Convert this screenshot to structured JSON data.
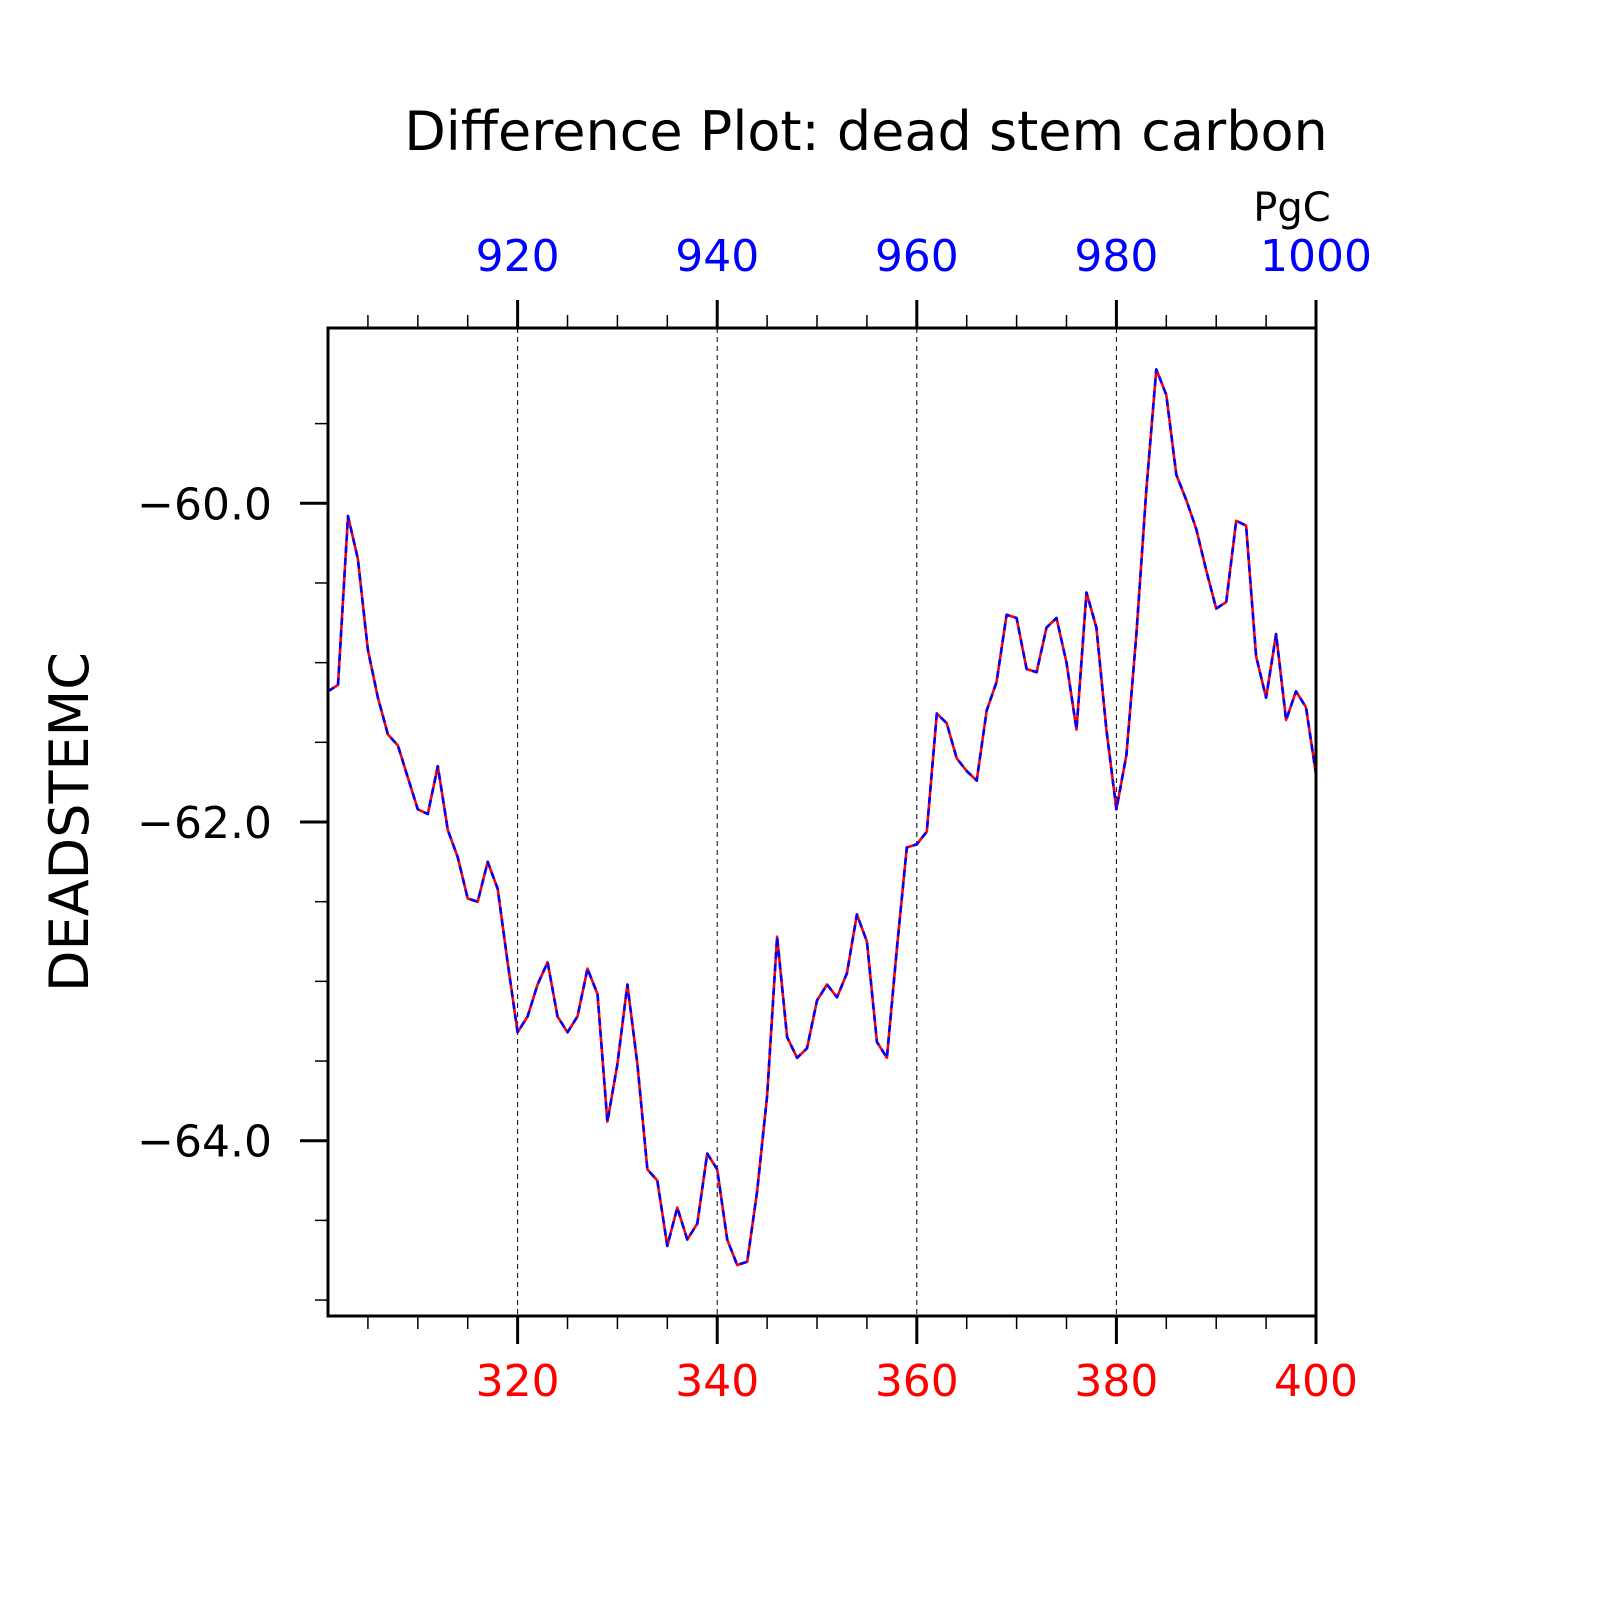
{
  "chart_data": {
    "type": "line",
    "title": "Difference Plot: dead stem carbon",
    "ylabel": "DEADSTEMC",
    "units": "PgC",
    "x": [
      301,
      302,
      303,
      304,
      305,
      306,
      307,
      308,
      309,
      310,
      311,
      312,
      313,
      314,
      315,
      316,
      317,
      318,
      319,
      320,
      321,
      322,
      323,
      324,
      325,
      326,
      327,
      328,
      329,
      330,
      331,
      332,
      333,
      334,
      335,
      336,
      337,
      338,
      339,
      340,
      341,
      342,
      343,
      344,
      345,
      346,
      347,
      348,
      349,
      350,
      351,
      352,
      353,
      354,
      355,
      356,
      357,
      358,
      359,
      360,
      361,
      362,
      363,
      364,
      365,
      366,
      367,
      368,
      369,
      370,
      371,
      372,
      373,
      374,
      375,
      376,
      377,
      378,
      379,
      380,
      381,
      382,
      383,
      384,
      385,
      386,
      387,
      388,
      389,
      390,
      391,
      392,
      393,
      394,
      395,
      396,
      397,
      398,
      399,
      400
    ],
    "y": [
      -61.18,
      -61.14,
      -60.08,
      -60.35,
      -60.92,
      -61.22,
      -61.45,
      -61.52,
      -61.72,
      -61.92,
      -61.95,
      -61.65,
      -62.05,
      -62.22,
      -62.48,
      -62.5,
      -62.25,
      -62.42,
      -62.88,
      -63.32,
      -63.22,
      -63.02,
      -62.88,
      -63.22,
      -63.32,
      -63.22,
      -62.92,
      -63.08,
      -63.88,
      -63.52,
      -63.02,
      -63.52,
      -64.18,
      -64.25,
      -64.66,
      -64.42,
      -64.62,
      -64.52,
      -64.08,
      -64.18,
      -64.62,
      -64.78,
      -64.76,
      -64.32,
      -63.72,
      -62.72,
      -63.35,
      -63.48,
      -63.42,
      -63.12,
      -63.02,
      -63.1,
      -62.95,
      -62.58,
      -62.75,
      -63.38,
      -63.48,
      -62.8,
      -62.16,
      -62.14,
      -62.06,
      -61.32,
      -61.38,
      -61.6,
      -61.68,
      -61.74,
      -61.3,
      -61.12,
      -60.7,
      -60.72,
      -61.04,
      -61.06,
      -60.78,
      -60.72,
      -61.0,
      -61.42,
      -60.56,
      -60.78,
      -61.42,
      -61.92,
      -61.58,
      -60.82,
      -59.92,
      -59.16,
      -59.32,
      -59.82,
      -59.98,
      -60.16,
      -60.42,
      -60.66,
      -60.62,
      -60.11,
      -60.14,
      -60.96,
      -61.22,
      -60.82,
      -61.36,
      -61.18,
      -61.28,
      -61.7
    ],
    "xlim": [
      301,
      400
    ],
    "ylim": [
      -65.1,
      -58.9
    ],
    "x_ticks": [
      320,
      340,
      360,
      380,
      400
    ],
    "x_tick_labels": [
      "320",
      "340",
      "360",
      "380",
      "400"
    ],
    "top_ticks": [
      320,
      340,
      360,
      380,
      400
    ],
    "top_tick_labels": [
      "920",
      "940",
      "960",
      "980",
      "1000"
    ],
    "y_ticks": [
      -60,
      -62,
      -64
    ],
    "y_tick_labels": [
      "−60.0",
      "−62.0",
      "−64.0"
    ],
    "grid": "vertical-dashed",
    "series": [
      {
        "color": "#ff0000",
        "style": "solid"
      },
      {
        "color": "#0000ff",
        "style": "dashed"
      }
    ],
    "colors": {
      "bottom_axis": "#ff0000",
      "top_axis": "#0000ff",
      "text": "#000000"
    }
  }
}
